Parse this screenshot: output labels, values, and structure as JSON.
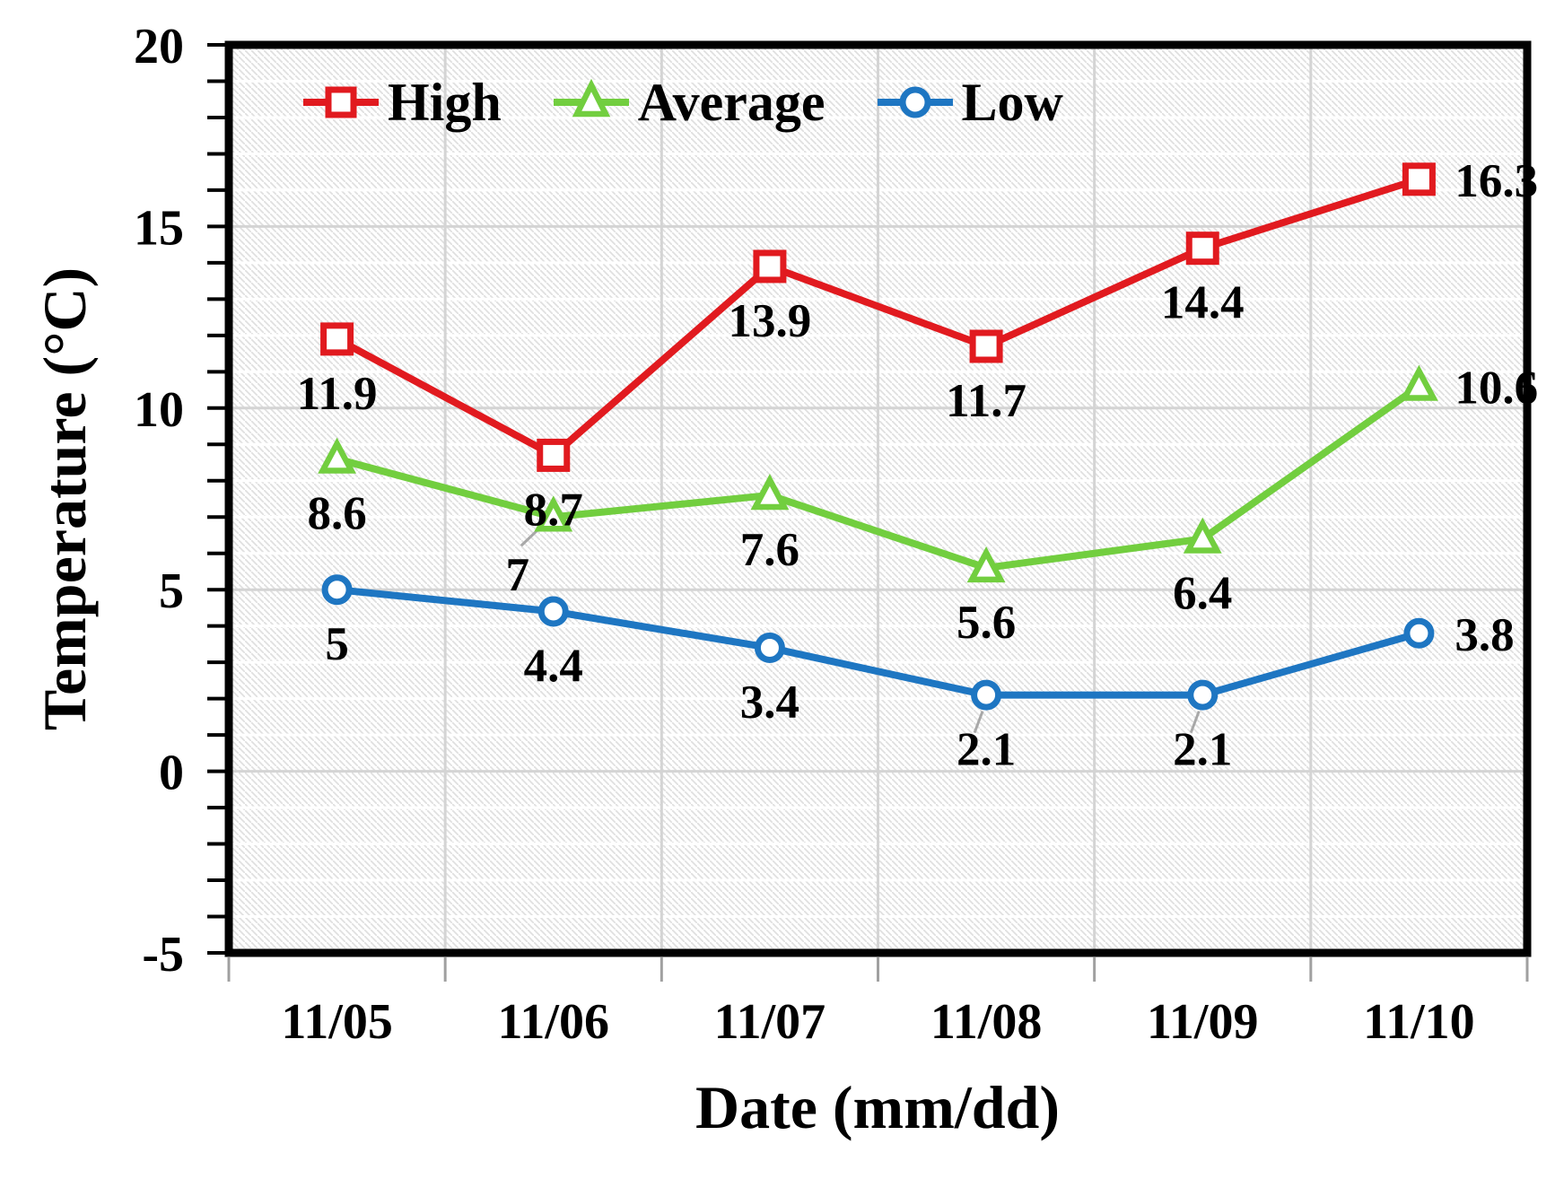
{
  "chart_data": {
    "type": "line",
    "title": "",
    "xlabel": "Date (mm/dd)",
    "ylabel": "Temperature (°C)",
    "categories": [
      "11/05",
      "11/06",
      "11/07",
      "11/08",
      "11/09",
      "11/10"
    ],
    "series": [
      {
        "name": "High",
        "color": "#e11a1f",
        "marker": "square",
        "values": [
          11.9,
          8.7,
          13.9,
          11.7,
          14.4,
          16.3
        ],
        "labels": [
          "11.9",
          "8.7",
          "13.9",
          "11.7",
          "14.4",
          "16.3"
        ],
        "label_pos": [
          "below",
          "below",
          "below",
          "below",
          "below",
          "right"
        ],
        "leader_points": []
      },
      {
        "name": "Average",
        "color": "#72ce3f",
        "marker": "triangle",
        "values": [
          8.6,
          7,
          7.6,
          5.6,
          6.4,
          10.6
        ],
        "labels": [
          "8.6",
          "7",
          "7.6",
          "5.6",
          "6.4",
          "10.6"
        ],
        "label_pos": [
          "below",
          "below-left",
          "below",
          "below",
          "below",
          "right"
        ],
        "leader_points": [
          1
        ]
      },
      {
        "name": "Low",
        "color": "#1e76c2",
        "marker": "circle",
        "values": [
          5,
          4.4,
          3.4,
          2.1,
          2.1,
          3.8
        ],
        "labels": [
          "5",
          "4.4",
          "3.4",
          "2.1",
          "2.1",
          "3.8"
        ],
        "label_pos": [
          "below",
          "below",
          "below",
          "below",
          "below",
          "right"
        ],
        "leader_points": [
          3,
          4
        ]
      }
    ],
    "ylim": [
      -5,
      20
    ],
    "yticks": [
      20,
      15,
      10,
      5,
      0,
      -5
    ],
    "y_minor_step": 1,
    "grid": "horizontal major+minor, vertical at category boundaries",
    "plot_background": "diagonal-hatch",
    "legend_position": "top-inside"
  },
  "colors": {
    "axis": "#000000",
    "grid": "#d4d4d4",
    "minor_grid": "#ffffff",
    "hatch": "#e0e0e0",
    "leader": "#a8a8a8",
    "marker_fill": "#ffffff",
    "tick_minor": "#000000",
    "bottom_tick": "#a0a0a0",
    "text": "#000000",
    "background": "#ffffff"
  }
}
